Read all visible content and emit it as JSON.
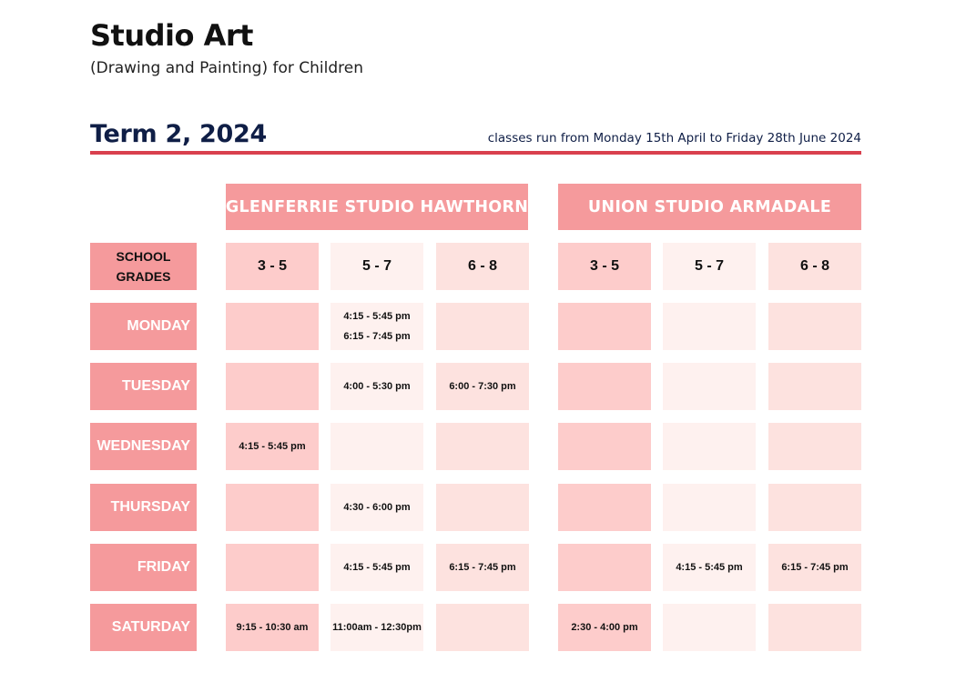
{
  "title": "Studio Art",
  "subtitle": "(Drawing and Painting) for Children",
  "term": {
    "label": "Term 2, 2024",
    "note": "classes run from Monday 15th April to Friday 28th June 2024"
  },
  "studios": [
    {
      "name": "GLENFERRIE STUDIO HAWTHORN"
    },
    {
      "name": "UNION STUDIO ARMADALE"
    }
  ],
  "grades_label_line1": "SCHOOL",
  "grades_label_line2": "GRADES",
  "grade_headers": [
    "3 - 5",
    "5 - 7",
    "6 - 8",
    "3 - 5",
    "5 - 7",
    "6 - 8"
  ],
  "days": [
    {
      "name": "MONDAY",
      "slots": [
        [],
        [
          "4:15 - 5:45 pm",
          "6:15 - 7:45 pm"
        ],
        [],
        [],
        [],
        []
      ]
    },
    {
      "name": "TUESDAY",
      "slots": [
        [],
        [
          "4:00 - 5:30 pm"
        ],
        [
          "6:00 - 7:30 pm"
        ],
        [],
        [],
        []
      ]
    },
    {
      "name": "WEDNESDAY",
      "slots": [
        [
          "4:15 - 5:45 pm"
        ],
        [],
        [],
        [],
        [],
        []
      ]
    },
    {
      "name": "THURSDAY",
      "slots": [
        [],
        [
          "4:30 - 6:00 pm"
        ],
        [],
        [],
        [],
        []
      ]
    },
    {
      "name": "FRIDAY",
      "slots": [
        [],
        [
          "4:15 - 5:45 pm"
        ],
        [
          "6:15 - 7:45 pm"
        ],
        [],
        [
          "4:15 - 5:45 pm"
        ],
        [
          "6:15 - 7:45 pm"
        ]
      ]
    },
    {
      "name": "SATURDAY",
      "slots": [
        [
          "9:15 - 10:30 am"
        ],
        [
          "11:00am - 12:30pm"
        ],
        [],
        [
          "2:30 - 4:00 pm"
        ],
        [],
        []
      ]
    }
  ],
  "colors": {
    "accent_rule": "#d9404e",
    "header_pink": "#f59a9c",
    "navy_text": "#0f1e46",
    "grade_3_5": "#fdcccb",
    "grade_5_7": "#fef1ef",
    "grade_6_8": "#fde2df"
  }
}
